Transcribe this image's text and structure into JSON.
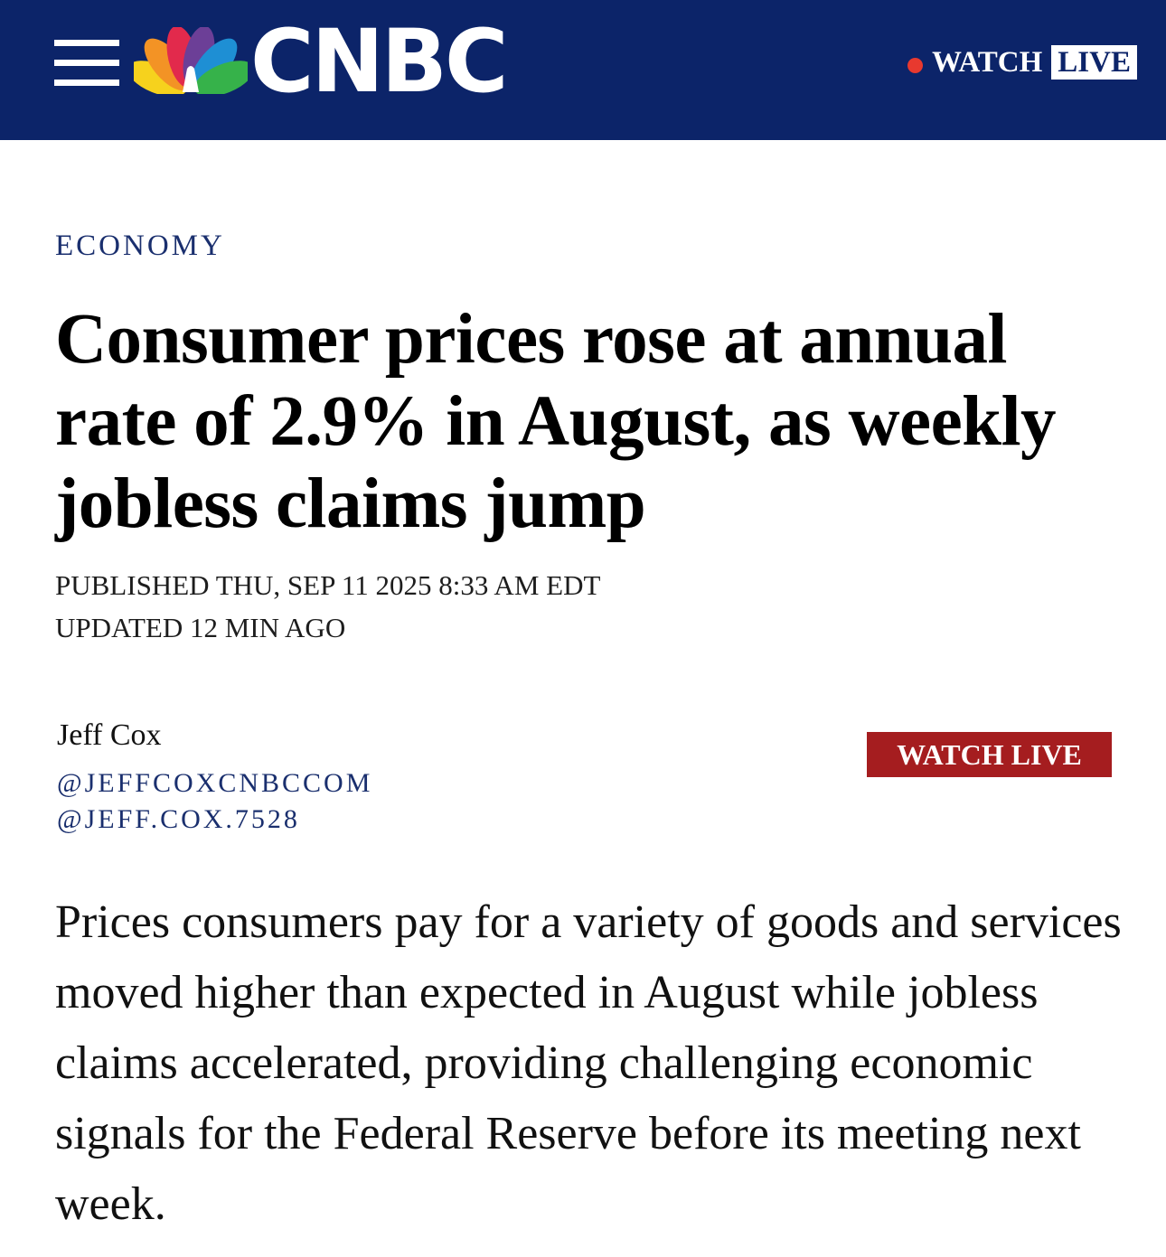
{
  "header": {
    "logo_text": "CNBC",
    "watch_text": "WATCH",
    "live_text": "LIVE",
    "colors": {
      "background": "#0c2469",
      "live_dot": "#e8392f",
      "peacock": [
        "#f6d21d",
        "#f39325",
        "#e22a4c",
        "#6c3f97",
        "#1e8fd4",
        "#36b24a"
      ]
    },
    "icons": [
      "hamburger-menu-icon",
      "cnbc-peacock-logo",
      "live-dot-icon"
    ]
  },
  "article": {
    "section": "ECONOMY",
    "headline": "Consumer prices rose at annual rate of 2.9% in August, as weekly jobless claims jump",
    "published": "PUBLISHED THU, SEP 11 2025 8:33 AM EDT",
    "updated": "UPDATED 12 MIN AGO",
    "author": {
      "name": "Jeff Cox",
      "twitter": "@JEFFCOXCNBCCOM",
      "facebook": "@JEFF.COX.7528"
    },
    "watch_live_button": "WATCH LIVE",
    "watch_live_color": "#a51d1f",
    "body": "Prices consumers pay for a variety of goods and services moved higher than expected in August while jobless claims accelerated, providing challenging economic signals for the Federal Reserve before its meeting next week."
  }
}
